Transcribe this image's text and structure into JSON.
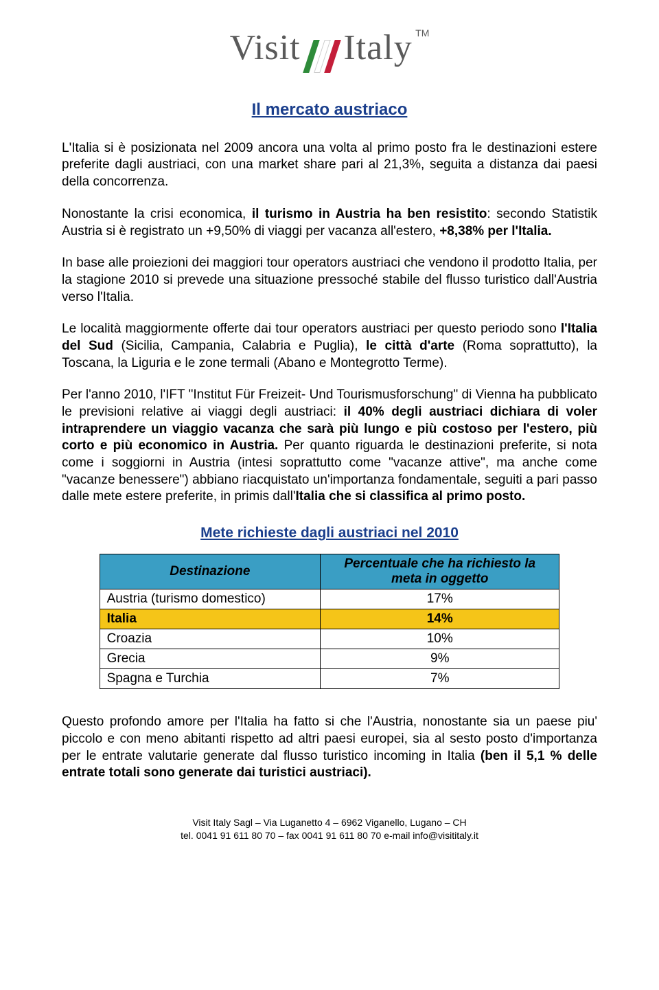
{
  "logo": {
    "word1": "Visit",
    "word2": "Italy",
    "tm": "TM",
    "slash_colors": [
      "#2e8b3a",
      "#ffffff",
      "#c41e3a"
    ]
  },
  "title": "Il mercato austriaco",
  "paragraphs": {
    "p1a": "L'Italia  si è posizionata nel 2009 ancora una volta al primo posto fra le destinazioni estere preferite dagli austriaci, con una market share pari al 21,3%, seguita a distanza dai paesi della concorrenza.",
    "p2a": "Nonostante la crisi economica, ",
    "p2b": "il turismo in Austria ha ben resistito",
    "p2c": ": secondo Statistik Austria si è registrato un +9,50% di viaggi per vacanza all'estero, ",
    "p2d": "+8,38% per l'Italia.",
    "p3": "In base alle proiezioni dei maggiori tour operators austriaci che vendono il prodotto Italia, per la stagione 2010 si prevede una situazione pressoché stabile del flusso turistico dall'Austria verso l'Italia.",
    "p4a": "Le località maggiormente offerte dai tour operators austriaci per questo periodo sono ",
    "p4b": "l'Italia del Sud ",
    "p4c": "(Sicilia, Campania, Calabria e Puglia), ",
    "p4d": "le città d'arte ",
    "p4e": "(Roma soprattutto), la Toscana, la Liguria e le zone termali (Abano e Montegrotto Terme).",
    "p5a": "Per l'anno 2010, l'IFT \"Institut Für Freizeit- Und Tourismusforschung\" di Vienna ha pubblicato le previsioni relative ai viaggi degli austriaci: ",
    "p5b": "il 40% degli austriaci dichiara di voler intraprendere un viaggio vacanza che sarà più lungo e più costoso per l'estero, più corto e più economico in Austria.",
    "p5c": " Per quanto riguarda le destinazioni preferite, si nota come i soggiorni in Austria (intesi soprattutto come \"vacanze attive\", ma anche come \"vacanze benessere\") abbiano riacquistato un'importanza fondamentale, seguiti a pari passo dalle mete estere preferite, in primis dall'",
    "p5d": "Italia che si classifica al primo posto.",
    "p6a": "Questo profondo amore per l'Italia ha fatto si che l'Austria, nonostante sia un paese piu' piccolo e con meno abitanti rispetto ad altri paesi europei,  sia al sesto posto d'importanza per le entrate valutarie generate dal flusso turistico incoming in Italia ",
    "p6b": "(ben il 5,1 % delle entrate totali sono generate dai turistici austriaci)."
  },
  "table": {
    "title": "Mete richieste dagli austriaci nel 2010",
    "header_col1": "Destinazione",
    "header_col2": "Percentuale che ha richiesto la meta in oggetto",
    "header_bg": "#3a9ec4",
    "highlight_bg": "#f5c518",
    "rows": [
      {
        "dest": "Austria (turismo domestico)",
        "pct": "17%",
        "highlight": false
      },
      {
        "dest": "Italia",
        "pct": "14%",
        "highlight": true
      },
      {
        "dest": "Croazia",
        "pct": "10%",
        "highlight": false
      },
      {
        "dest": "Grecia",
        "pct": "9%",
        "highlight": false
      },
      {
        "dest": "Spagna e Turchia",
        "pct": "7%",
        "highlight": false
      }
    ]
  },
  "footer": {
    "line1": "Visit Italy Sagl – Via Luganetto 4 – 6962 Viganello, Lugano – CH",
    "line2": "tel. 0041 91 611 80 70 – fax  0041 91 611 80 70 e-mail info@visititaly.it"
  }
}
